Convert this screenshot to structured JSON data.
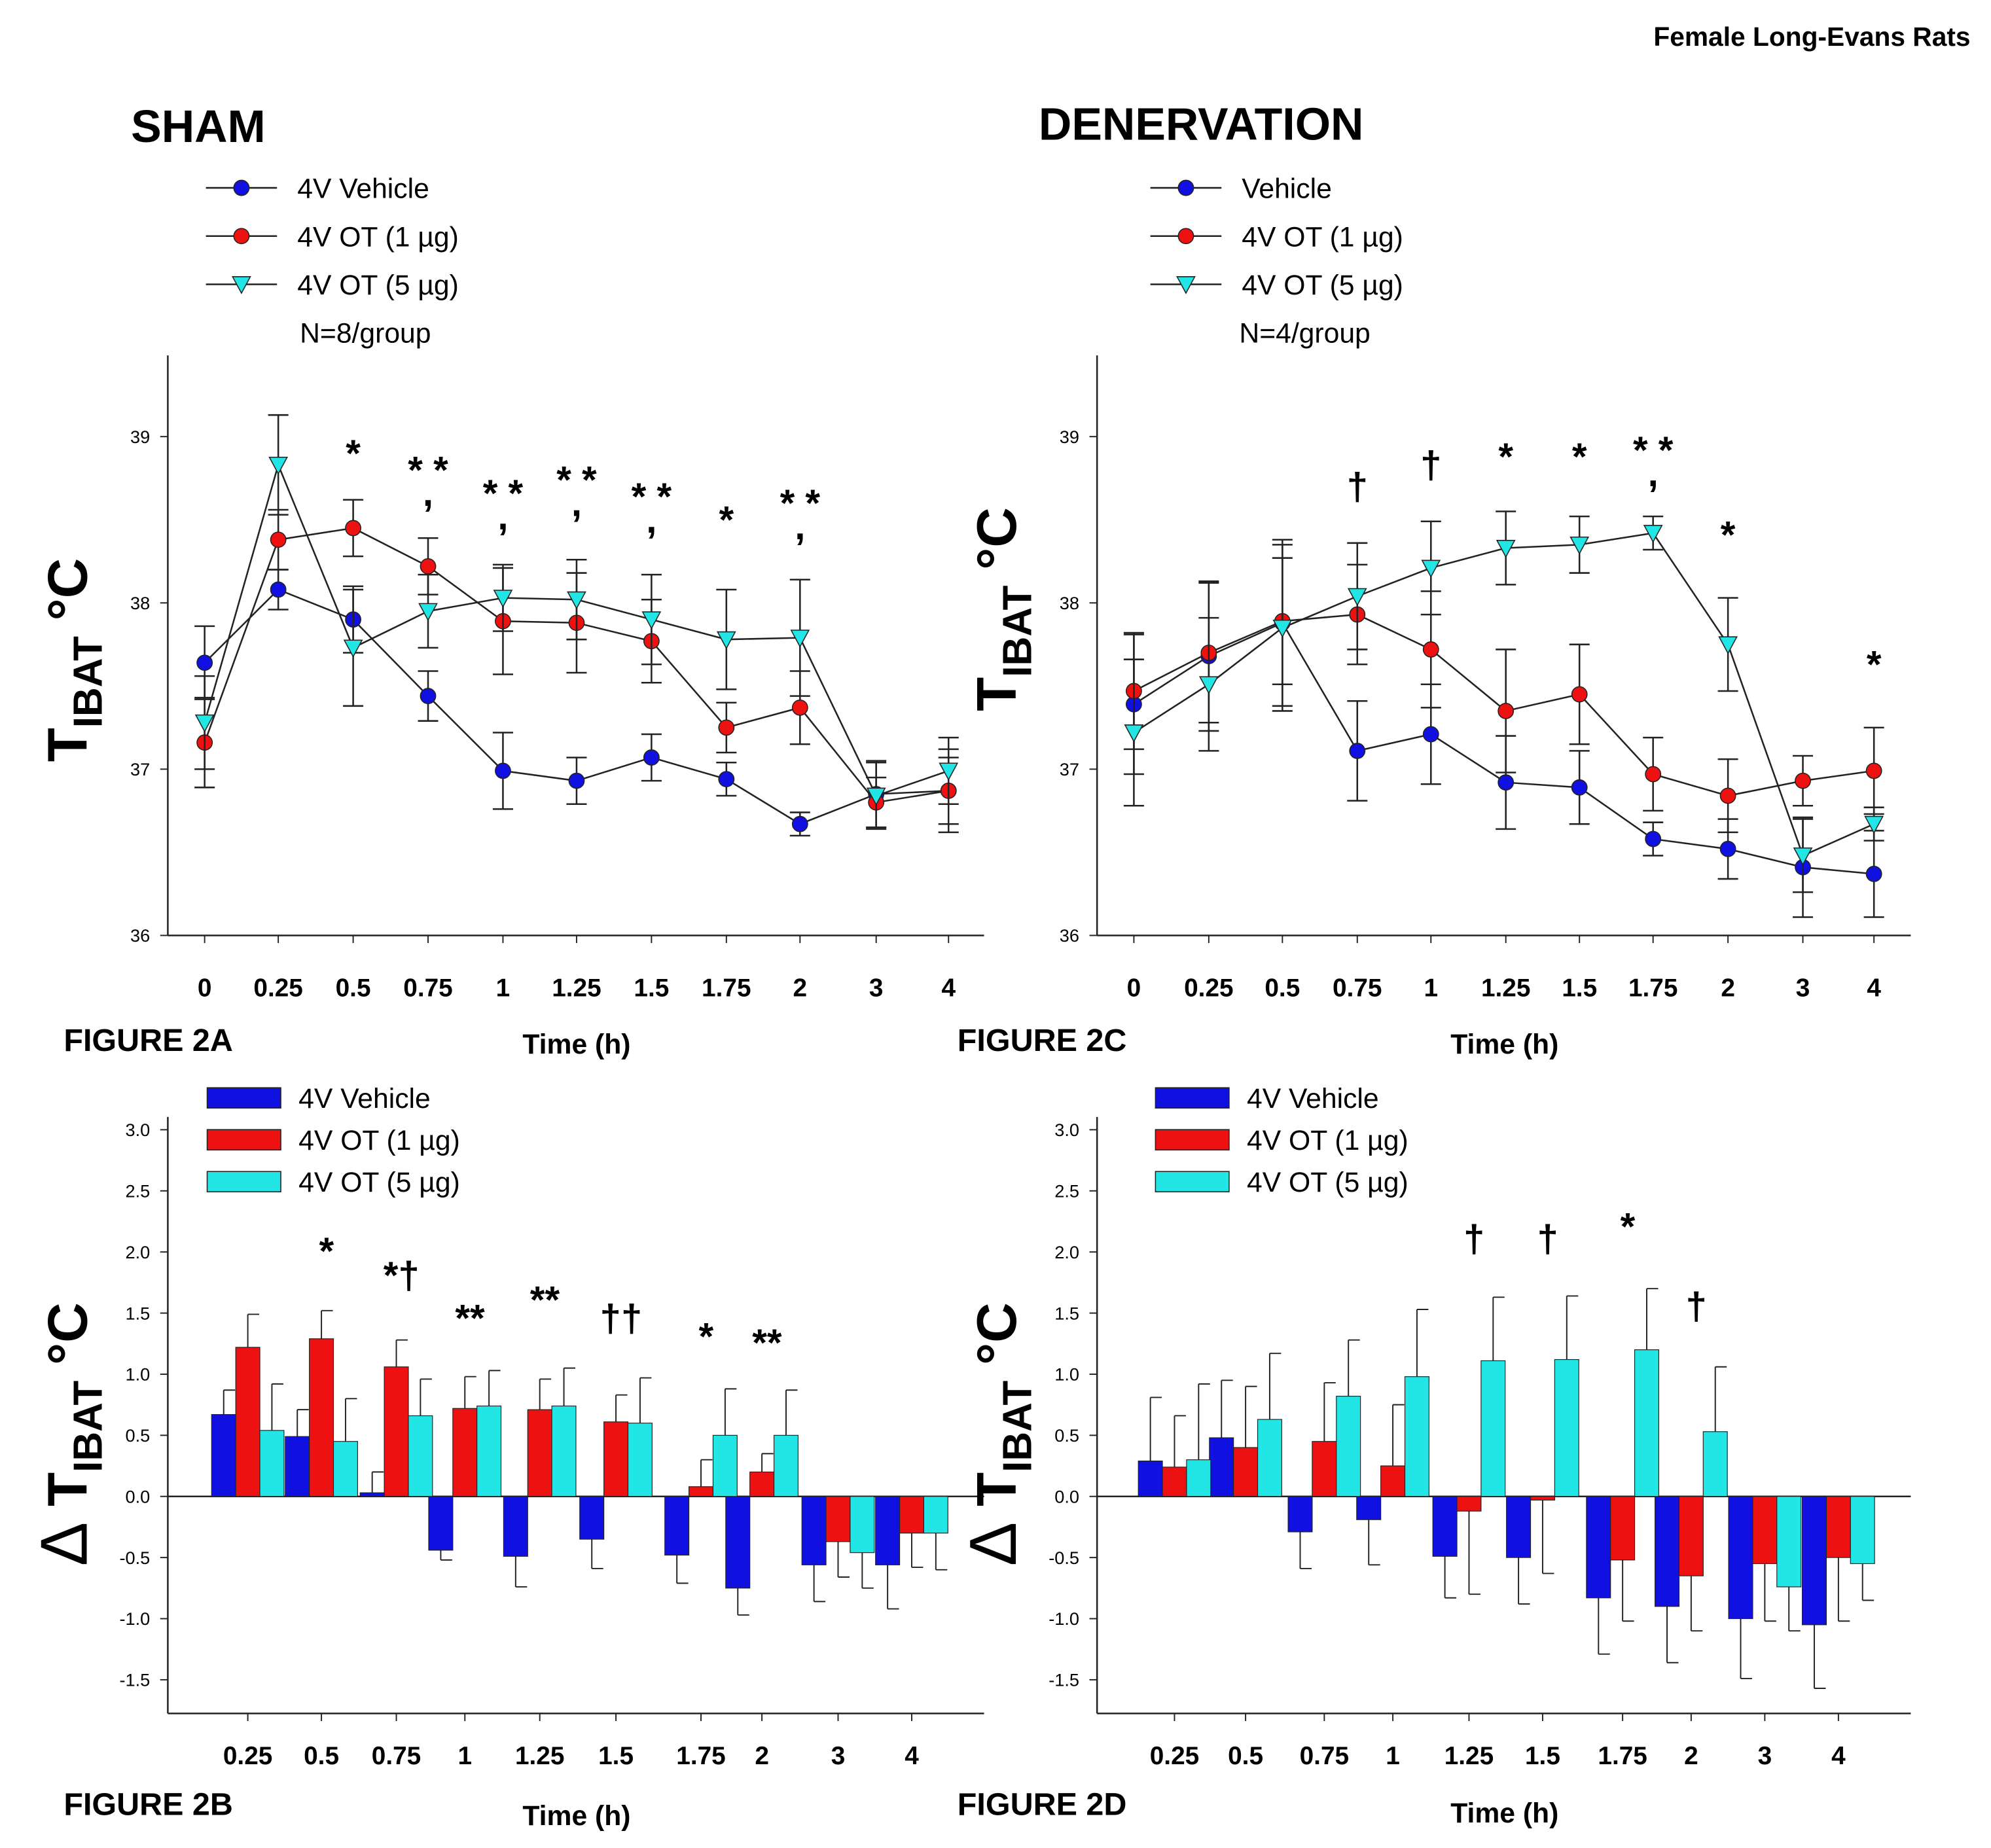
{
  "header": "Female Long-Evans Rats",
  "colors": {
    "vehicle": "#1010e0",
    "ot1": "#ee1111",
    "ot5": "#22e5e5",
    "line": "#222222"
  },
  "chart_data": [
    {
      "id": "A",
      "type": "line",
      "title": "SHAM",
      "figure_label": "FIGURE 2A",
      "xlabel": "Time (h)",
      "ylabel": "TIBAT °C",
      "ylabel_main": "T",
      "ylabel_sub": "IBAT",
      "ylabel_unit": "°C",
      "n_note": "N=8/group",
      "x": [
        "0",
        "0.25",
        "0.5",
        "0.75",
        "1",
        "1.25",
        "1.5",
        "1.75",
        "2",
        "3",
        "4"
      ],
      "ylim": [
        36,
        39.5
      ],
      "yticks": [
        "36",
        "37",
        "38",
        "39"
      ],
      "series": [
        {
          "name": "4V Vehicle",
          "marker": "circle",
          "color": "#1010e0",
          "values": [
            37.64,
            38.08,
            37.9,
            37.44,
            36.99,
            36.93,
            37.07,
            36.94,
            36.67,
            36.85,
            36.87
          ],
          "err": [
            0.22,
            0.12,
            0.2,
            0.15,
            0.23,
            0.14,
            0.14,
            0.1,
            0.07,
            0.2,
            0.25
          ]
        },
        {
          "name": "4V OT (1 µg)",
          "marker": "circle",
          "color": "#ee1111",
          "values": [
            37.16,
            38.38,
            38.45,
            38.22,
            37.89,
            37.88,
            37.77,
            37.25,
            37.37,
            36.8,
            36.87
          ],
          "err": [
            0.27,
            0.18,
            0.17,
            0.17,
            0.32,
            0.3,
            0.25,
            0.15,
            0.22,
            0.15,
            0.2
          ]
        },
        {
          "name": "4V OT (5 µg)",
          "marker": "triangle-down",
          "color": "#22e5e5",
          "values": [
            37.28,
            38.83,
            37.73,
            37.95,
            38.03,
            38.02,
            37.9,
            37.78,
            37.79,
            36.84,
            36.99
          ],
          "err": [
            0.28,
            0.3,
            0.35,
            0.22,
            0.2,
            0.24,
            0.27,
            0.3,
            0.35,
            0.2,
            0.2
          ]
        }
      ],
      "annotations": [
        {
          "x": "0.5",
          "y": 38.82,
          "text": "*"
        },
        {
          "x": "0.75",
          "y": 38.72,
          "text": "*,*"
        },
        {
          "x": "1",
          "y": 38.58,
          "text": "*,*"
        },
        {
          "x": "1.25",
          "y": 38.66,
          "text": "*,*"
        },
        {
          "x": "1.5",
          "y": 38.56,
          "text": "*,*"
        },
        {
          "x": "1.75",
          "y": 38.42,
          "text": "*"
        },
        {
          "x": "2",
          "y": 38.52,
          "text": "*,*"
        }
      ]
    },
    {
      "id": "C",
      "type": "line",
      "title": "DENERVATION",
      "figure_label": "FIGURE 2C",
      "xlabel": "Time (h)",
      "ylabel": "TIBAT °C",
      "ylabel_main": "T",
      "ylabel_sub": "IBAT",
      "ylabel_unit": "°C",
      "n_note": "N=4/group",
      "x": [
        "0",
        "0.25",
        "0.5",
        "0.75",
        "1",
        "1.25",
        "1.5",
        "1.75",
        "2",
        "3",
        "4"
      ],
      "ylim": [
        36,
        39.5
      ],
      "yticks": [
        "36",
        "37",
        "38",
        "39"
      ],
      "series": [
        {
          "name": "Vehicle",
          "marker": "circle",
          "color": "#1010e0",
          "values": [
            37.39,
            37.68,
            37.88,
            37.11,
            37.21,
            36.92,
            36.89,
            36.58,
            36.52,
            36.41,
            36.37
          ],
          "err": [
            0.42,
            0.45,
            0.5,
            0.3,
            0.3,
            0.28,
            0.22,
            0.1,
            0.18,
            0.3,
            0.26
          ]
        },
        {
          "name": "4V OT (1 µg)",
          "marker": "circle",
          "color": "#ee1111",
          "values": [
            37.47,
            37.7,
            37.89,
            37.93,
            37.72,
            37.35,
            37.45,
            36.97,
            36.84,
            36.93,
            36.99
          ],
          "err": [
            0.35,
            0.42,
            0.38,
            0.3,
            0.35,
            0.37,
            0.3,
            0.22,
            0.22,
            0.15,
            0.26
          ]
        },
        {
          "name": "4V OT (5 µg)",
          "marker": "triangle-down",
          "color": "#22e5e5",
          "values": [
            37.22,
            37.51,
            37.85,
            38.04,
            38.21,
            38.33,
            38.35,
            38.42,
            37.75,
            36.48,
            36.67
          ],
          "err": [
            0.44,
            0.4,
            0.5,
            0.32,
            0.28,
            0.22,
            0.17,
            0.1,
            0.28,
            0.22,
            0.1
          ]
        }
      ],
      "annotations": [
        {
          "x": "0.75",
          "y": 38.62,
          "text": "†"
        },
        {
          "x": "1",
          "y": 38.75,
          "text": "†"
        },
        {
          "x": "1.25",
          "y": 38.8,
          "text": "*"
        },
        {
          "x": "1.5",
          "y": 38.8,
          "text": "*"
        },
        {
          "x": "1.75",
          "y": 38.84,
          "text": "*,*"
        },
        {
          "x": "2",
          "y": 38.33,
          "text": "*"
        },
        {
          "x": "4",
          "y": 37.55,
          "text": "*"
        }
      ]
    },
    {
      "id": "B",
      "type": "bar",
      "figure_label": "FIGURE 2B",
      "xlabel": "Time (h)",
      "ylabel": "Δ TIBAT °C",
      "ylabel_main": "T",
      "ylabel_sub": "IBAT",
      "ylabel_unit": "°C",
      "ylabel_prefix": "Δ",
      "categories": [
        "0.25",
        "0.5",
        "0.75",
        "1",
        "1.25",
        "1.5",
        "1.75",
        "2",
        "3",
        "4"
      ],
      "ylim": [
        -1.78,
        3.0
      ],
      "yticks": [
        "-1.5",
        "-1.0",
        "-0.5",
        "0.0",
        "0.5",
        "1.0",
        "1.5",
        "2.0",
        "2.5",
        "3.0"
      ],
      "series": [
        {
          "name": "4V Vehicle",
          "color": "#1010e0",
          "values": [
            0.67,
            0.49,
            0.03,
            -0.44,
            -0.49,
            -0.35,
            -0.48,
            -0.75,
            -0.56,
            -0.56
          ],
          "err": [
            0.2,
            0.22,
            0.17,
            0.08,
            0.25,
            0.24,
            0.23,
            0.22,
            0.3,
            0.36
          ]
        },
        {
          "name": "4V OT (1 µg)",
          "color": "#ee1111",
          "values": [
            1.22,
            1.29,
            1.06,
            0.72,
            0.71,
            0.61,
            0.08,
            0.2,
            -0.37,
            -0.3
          ],
          "err": [
            0.27,
            0.23,
            0.22,
            0.26,
            0.25,
            0.22,
            0.22,
            0.15,
            0.29,
            0.28
          ]
        },
        {
          "name": "4V OT (5 µg)",
          "color": "#22e5e5",
          "values": [
            0.54,
            0.45,
            0.66,
            0.74,
            0.74,
            0.6,
            0.5,
            0.5,
            -0.46,
            -0.3
          ],
          "err": [
            0.38,
            0.35,
            0.3,
            0.29,
            0.31,
            0.37,
            0.38,
            0.37,
            0.29,
            0.3
          ]
        }
      ],
      "annotations": [
        {
          "x": "0.5",
          "y": 1.9,
          "text": "*"
        },
        {
          "x": "0.75",
          "y": 1.7,
          "text": "*†"
        },
        {
          "x": "1",
          "y": 1.35,
          "text": "**"
        },
        {
          "x": "1.25",
          "y": 1.5,
          "text": "**"
        },
        {
          "x": "1.5",
          "y": 1.35,
          "text": "††"
        },
        {
          "x": "1.75",
          "y": 1.2,
          "text": "*"
        },
        {
          "x": "2",
          "y": 1.15,
          "text": "**"
        }
      ]
    },
    {
      "id": "D",
      "type": "bar",
      "figure_label": "FIGURE 2D",
      "xlabel": "Time (h)",
      "ylabel": "Δ TIBAT °C",
      "ylabel_main": "T",
      "ylabel_sub": "IBAT",
      "ylabel_unit": "°C",
      "ylabel_prefix": "Δ",
      "categories": [
        "0.25",
        "0.5",
        "0.75",
        "1",
        "1.25",
        "1.5",
        "1.75",
        "2",
        "3",
        "4"
      ],
      "ylim": [
        -1.78,
        3.0
      ],
      "yticks": [
        "-1.5",
        "-1.0",
        "-0.5",
        "0.0",
        "0.5",
        "1.0",
        "1.5",
        "2.0",
        "2.5",
        "3.0"
      ],
      "series": [
        {
          "name": "4V Vehicle",
          "color": "#1010e0",
          "values": [
            0.29,
            0.48,
            -0.29,
            -0.19,
            -0.49,
            -0.5,
            -0.83,
            -0.9,
            -1.0,
            -1.05
          ],
          "err": [
            0.52,
            0.47,
            0.3,
            0.37,
            0.34,
            0.38,
            0.46,
            0.46,
            0.49,
            0.52
          ]
        },
        {
          "name": "4V OT (1 µg)",
          "color": "#ee1111",
          "values": [
            0.24,
            0.4,
            0.45,
            0.25,
            -0.12,
            -0.03,
            -0.52,
            -0.65,
            -0.55,
            -0.5
          ],
          "err": [
            0.42,
            0.5,
            0.48,
            0.5,
            0.68,
            0.6,
            0.5,
            0.45,
            0.47,
            0.52
          ]
        },
        {
          "name": "4V OT (5 µg)",
          "color": "#22e5e5",
          "values": [
            0.3,
            0.63,
            0.82,
            0.98,
            1.11,
            1.12,
            1.2,
            0.53,
            -0.74,
            -0.55
          ],
          "err": [
            0.62,
            0.54,
            0.46,
            0.55,
            0.52,
            0.52,
            0.5,
            0.53,
            0.36,
            0.3
          ]
        }
      ],
      "annotations": [
        {
          "x": "1.25",
          "y": 2.0,
          "text": "†"
        },
        {
          "x": "1.5",
          "y": 2.0,
          "text": "†"
        },
        {
          "x": "1.75",
          "y": 2.1,
          "text": "*"
        },
        {
          "x": "2",
          "y": 1.45,
          "text": "†"
        }
      ]
    }
  ]
}
